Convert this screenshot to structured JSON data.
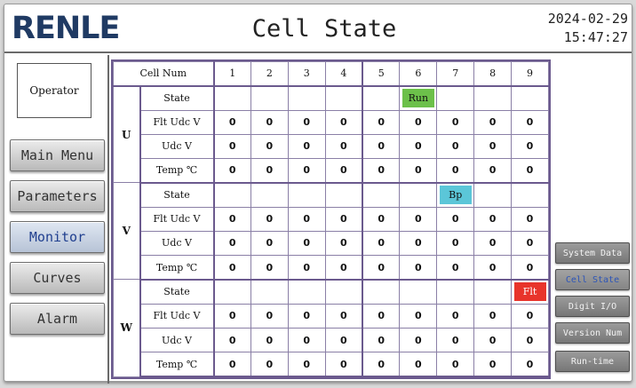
{
  "header": {
    "logo": "RENLE",
    "title": "Cell State",
    "date": "2024-02-29",
    "time": "15:47:27"
  },
  "sidebar": {
    "operator": "Operator",
    "items": [
      {
        "label": "Main Menu",
        "active": false
      },
      {
        "label": "Parameters",
        "active": false
      },
      {
        "label": "Monitor",
        "active": true
      },
      {
        "label": "Curves",
        "active": false
      },
      {
        "label": "Alarm",
        "active": false
      }
    ]
  },
  "table": {
    "header_label": "Cell Num",
    "cell_numbers": [
      "1",
      "2",
      "3",
      "4",
      "5",
      "6",
      "7",
      "8",
      "9"
    ],
    "row_labels": [
      "State",
      "Flt Udc V",
      "Udc V",
      "Temp ℃"
    ],
    "phases": [
      {
        "name": "U",
        "state": [
          "",
          "",
          "",
          "",
          "",
          "Run",
          "",
          "",
          ""
        ],
        "flt_udc": [
          "0",
          "0",
          "0",
          "0",
          "0",
          "0",
          "0",
          "0",
          "0"
        ],
        "udc": [
          "0",
          "0",
          "0",
          "0",
          "0",
          "0",
          "0",
          "0",
          "0"
        ],
        "temp": [
          "0",
          "0",
          "0",
          "0",
          "0",
          "0",
          "0",
          "0",
          "0"
        ]
      },
      {
        "name": "V",
        "state": [
          "",
          "",
          "",
          "",
          "",
          "",
          "Bp",
          "",
          ""
        ],
        "flt_udc": [
          "0",
          "0",
          "0",
          "0",
          "0",
          "0",
          "0",
          "0",
          "0"
        ],
        "udc": [
          "0",
          "0",
          "0",
          "0",
          "0",
          "0",
          "0",
          "0",
          "0"
        ],
        "temp": [
          "0",
          "0",
          "0",
          "0",
          "0",
          "0",
          "0",
          "0",
          "0"
        ]
      },
      {
        "name": "W",
        "state": [
          "",
          "",
          "",
          "",
          "",
          "",
          "",
          "",
          "Flt"
        ],
        "flt_udc": [
          "0",
          "0",
          "0",
          "0",
          "0",
          "0",
          "0",
          "0",
          "0"
        ],
        "udc": [
          "0",
          "0",
          "0",
          "0",
          "0",
          "0",
          "0",
          "0",
          "0"
        ],
        "temp": [
          "0",
          "0",
          "0",
          "0",
          "0",
          "0",
          "0",
          "0",
          "0"
        ]
      }
    ],
    "state_colors": {
      "Run": "#6cc04a",
      "Bp": "#5bc6d8",
      "Flt": "#e8342b"
    }
  },
  "submenu": {
    "items": [
      {
        "label": "System Data",
        "active": false
      },
      {
        "label": "Cell State",
        "active": true
      },
      {
        "label": "Digit I/O",
        "active": false
      },
      {
        "label": "Version Num",
        "active": false
      },
      {
        "label": "Run-time",
        "active": false
      }
    ]
  }
}
